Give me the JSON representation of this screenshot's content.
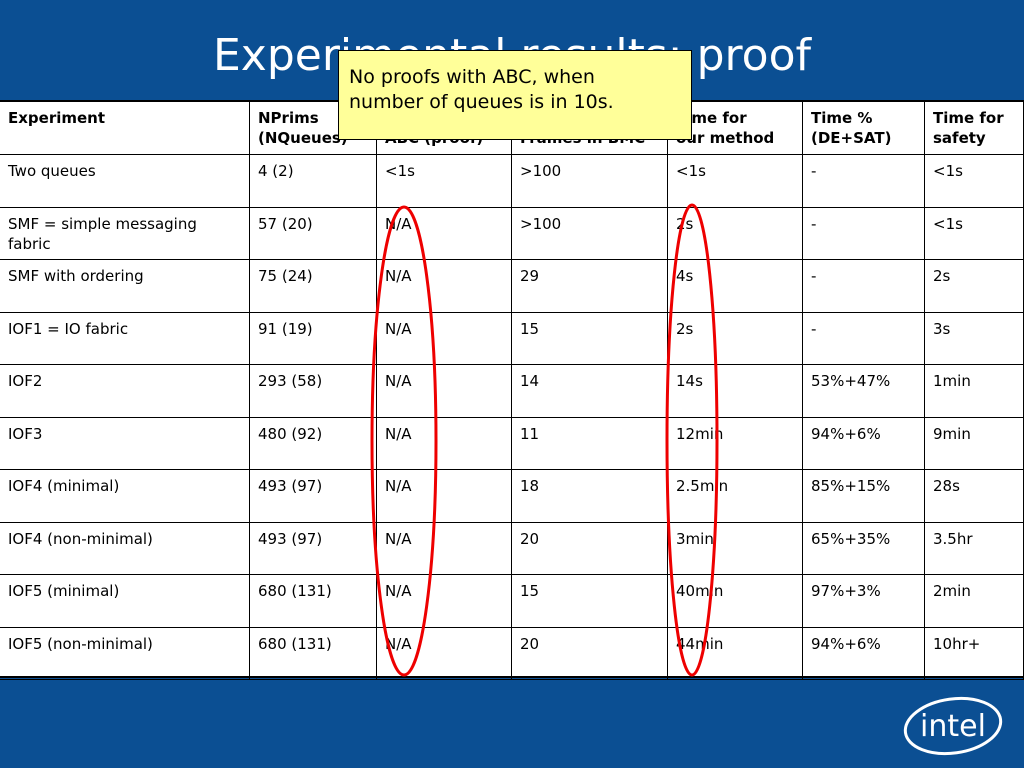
{
  "title": "Experimental results: proof",
  "callout": [
    "No proofs with ABC, when",
    "number of queues is in 10s."
  ],
  "table": {
    "header": [
      [
        "Experiment"
      ],
      [
        "NPrims",
        "(NQueues)"
      ],
      [
        "",
        "ABC (proof)"
      ],
      [
        "",
        "Frames in BMC"
      ],
      [
        "Time for",
        "our method"
      ],
      [
        "Time %",
        "(DE+SAT)"
      ],
      [
        "Time for",
        "safety"
      ]
    ],
    "rows": [
      [
        "Two queues",
        "4 (2)",
        "<1s",
        ">100",
        "<1s",
        "-",
        "<1s"
      ],
      [
        "SMF = simple messaging fabric",
        "57 (20)",
        "N/A",
        ">100",
        "2s",
        "-",
        "<1s"
      ],
      [
        "SMF with ordering",
        "75 (24)",
        "N/A",
        "29",
        "4s",
        "-",
        "2s"
      ],
      [
        "IOF1 = IO fabric",
        "91 (19)",
        "N/A",
        "15",
        "2s",
        "-",
        "3s"
      ],
      [
        "IOF2",
        "293 (58)",
        "N/A",
        "14",
        "14s",
        "53%+47%",
        "1min"
      ],
      [
        "IOF3",
        "480 (92)",
        "N/A",
        "11",
        "12min",
        "94%+6%",
        "9min"
      ],
      [
        "IOF4 (minimal)",
        "493 (97)",
        "N/A",
        "18",
        "2.5min",
        "85%+15%",
        "28s"
      ],
      [
        "IOF4 (non-minimal)",
        "493 (97)",
        "N/A",
        "20",
        "3min",
        "65%+35%",
        "3.5hr"
      ],
      [
        "IOF5 (minimal)",
        "680 (131)",
        "N/A",
        "15",
        "40min",
        "97%+3%",
        "2min"
      ],
      [
        "IOF5 (non-minimal)",
        "680 (131)",
        "N/A",
        "20",
        "44min",
        "94%+6%",
        "10hr+"
      ]
    ]
  },
  "logo": "intel"
}
